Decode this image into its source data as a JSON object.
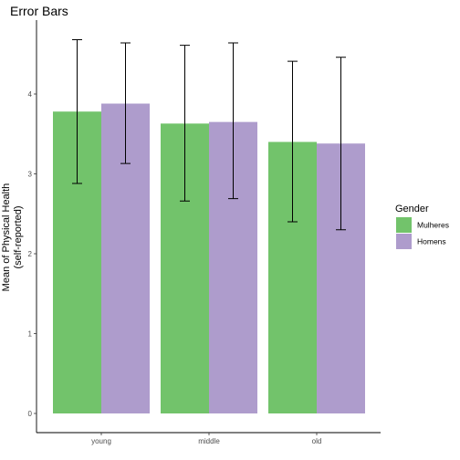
{
  "chart_data": {
    "type": "bar",
    "title": "Error Bars",
    "xlabel": "",
    "ylabel_lines": [
      "Mean of Physical Health",
      "(self-reported)"
    ],
    "categories": [
      "young",
      "middle",
      "old"
    ],
    "y_ticks": [
      "0",
      "1",
      "2",
      "3",
      "4"
    ],
    "ylim": [
      0,
      4.9
    ],
    "legend": {
      "title": "Gender",
      "position": "right"
    },
    "series": [
      {
        "name": "Mulheres",
        "color": "#72c36b",
        "values": [
          3.78,
          3.63,
          3.4
        ],
        "err_low": [
          2.88,
          2.66,
          2.4
        ],
        "err_high": [
          4.68,
          4.61,
          4.41
        ]
      },
      {
        "name": "Homens",
        "color": "#ae9ccc",
        "values": [
          3.88,
          3.65,
          3.38
        ],
        "err_low": [
          3.13,
          2.69,
          2.3
        ],
        "err_high": [
          4.64,
          4.64,
          4.46
        ]
      }
    ],
    "grid": false
  }
}
